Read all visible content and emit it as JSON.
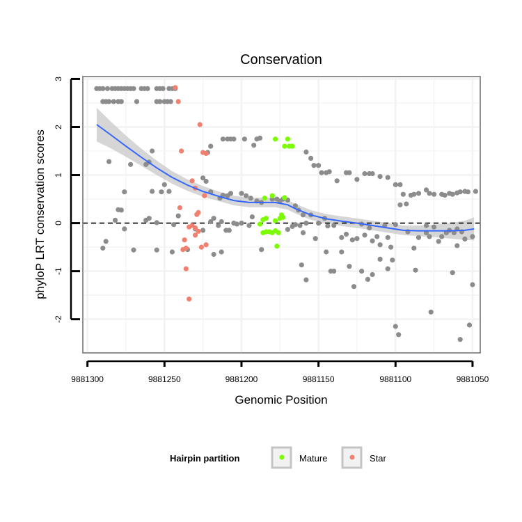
{
  "chart_data": {
    "type": "scatter",
    "title": "Conservation",
    "xlabel": "Genomic Position",
    "ylabel": "phyloP LRT conservation scores",
    "x_reversed": true,
    "xlim": [
      9881050,
      9881300
    ],
    "x_range": [
      9881303,
      9881045
    ],
    "ylim": [
      -2.7,
      3.05
    ],
    "x_ticks": [
      9881300,
      9881250,
      9881200,
      9881150,
      9881100,
      9881050
    ],
    "x_tick_labels": [
      "9881300",
      "9881250",
      "9881200",
      "9881150",
      "9881100",
      "9881050"
    ],
    "y_ticks": [
      -2,
      -1,
      0,
      1,
      2,
      3
    ],
    "y_tick_labels": [
      "-2",
      "-1",
      "0",
      "1",
      "2",
      "3"
    ],
    "grid": true,
    "hline": 0,
    "legend": {
      "title": "Hairpin partition",
      "position": "bottom",
      "entries": [
        {
          "label": "Mature",
          "color": "#7CFC00"
        },
        {
          "label": "Star",
          "color": "#F08070"
        }
      ]
    },
    "colors": {
      "other": "#8C8C8C",
      "mature": "#7CFC00",
      "star": "#F08070",
      "smooth": "#3366FF",
      "ribbon": "#C8C8C8"
    },
    "series": [
      {
        "name": "Other",
        "points": [
          [
            9881294,
            2.8
          ],
          [
            9881292,
            2.8
          ],
          [
            9881290,
            2.8
          ],
          [
            9881287,
            2.8
          ],
          [
            9881284,
            2.8
          ],
          [
            9881282,
            2.8
          ],
          [
            9881280,
            2.8
          ],
          [
            9881278,
            2.8
          ],
          [
            9881276,
            2.8
          ],
          [
            9881274,
            2.8
          ],
          [
            9881272,
            2.8
          ],
          [
            9881270,
            2.8
          ],
          [
            9881265,
            2.8
          ],
          [
            9881263,
            2.8
          ],
          [
            9881261,
            2.8
          ],
          [
            9881255,
            2.8
          ],
          [
            9881253,
            2.8
          ],
          [
            9881251,
            2.8
          ],
          [
            9881247,
            2.8
          ],
          [
            9881245,
            2.8
          ],
          [
            9881243,
            2.8
          ],
          [
            9881290,
            2.53
          ],
          [
            9881288,
            2.53
          ],
          [
            9881286,
            2.53
          ],
          [
            9881283,
            2.53
          ],
          [
            9881280,
            2.53
          ],
          [
            9881278,
            2.53
          ],
          [
            9881268,
            2.53
          ],
          [
            9881255,
            2.53
          ],
          [
            9881253,
            2.53
          ],
          [
            9881250,
            2.53
          ],
          [
            9881248,
            2.53
          ],
          [
            9881246,
            2.53
          ],
          [
            9881286,
            1.28
          ],
          [
            9881272,
            1.22
          ],
          [
            9881262,
            1.22
          ],
          [
            9881260,
            1.27
          ],
          [
            9881258,
            1.5
          ],
          [
            9881250,
            0.8
          ],
          [
            9881276,
            0.65
          ],
          [
            9881280,
            0.28
          ],
          [
            9881278,
            0.27
          ],
          [
            9881282,
            0.06
          ],
          [
            9881260,
            0.1
          ],
          [
            9881262,
            0.06
          ],
          [
            9881258,
            0.66
          ],
          [
            9881255,
            0.01
          ],
          [
            9881247,
            0.66
          ],
          [
            9881252,
            0.65
          ],
          [
            9881276,
            -0.12
          ],
          [
            9881270,
            -0.56
          ],
          [
            9881255,
            -0.56
          ],
          [
            9881288,
            -0.38
          ],
          [
            9881290,
            -0.52
          ],
          [
            9881245,
            -0.6
          ],
          [
            9881241,
            0.15
          ],
          [
            9881244,
            -0.03
          ],
          [
            9881220,
            1.6
          ],
          [
            9881222,
            1.47
          ],
          [
            9881212,
            1.75
          ],
          [
            9881209,
            1.75
          ],
          [
            9881207,
            1.75
          ],
          [
            9881205,
            1.75
          ],
          [
            9881198,
            1.75
          ],
          [
            9881192,
            1.62
          ],
          [
            9881190,
            1.75
          ],
          [
            9881188,
            1.77
          ],
          [
            9881225,
            0.94
          ],
          [
            9881223,
            0.87
          ],
          [
            9881220,
            0.65
          ],
          [
            9881214,
            0.52
          ],
          [
            9881212,
            0.58
          ],
          [
            9881209,
            0.57
          ],
          [
            9881207,
            0.62
          ],
          [
            9881200,
            0.62
          ],
          [
            9881197,
            0.57
          ],
          [
            9881194,
            0.52
          ],
          [
            9881190,
            0.46
          ],
          [
            9881187,
            0.43
          ],
          [
            9881180,
            0.5
          ],
          [
            9881177,
            0.5
          ],
          [
            9881175,
            0.46
          ],
          [
            9881173,
            0.5
          ],
          [
            9881170,
            0.48
          ],
          [
            9881165,
            0.36
          ],
          [
            9881163,
            0.27
          ],
          [
            9881160,
            0.17
          ],
          [
            9881158,
            0.0
          ],
          [
            9881220,
            0.03
          ],
          [
            9881218,
            0.1
          ],
          [
            9881215,
            -0.05
          ],
          [
            9881213,
            0.03
          ],
          [
            9881210,
            -0.15
          ],
          [
            9881208,
            -0.15
          ],
          [
            9881205,
            0.0
          ],
          [
            9881203,
            -0.02
          ],
          [
            9881200,
            0.0
          ],
          [
            9881195,
            -0.05
          ],
          [
            9881193,
            0.13
          ],
          [
            9881187,
            -0.55
          ],
          [
            9881230,
            -0.12
          ],
          [
            9881235,
            -0.55
          ],
          [
            9881225,
            -0.15
          ],
          [
            9881218,
            -0.65
          ],
          [
            9881213,
            -0.6
          ],
          [
            9881170,
            -0.13
          ],
          [
            9881167,
            -0.07
          ],
          [
            9881165,
            -0.03
          ],
          [
            9881158,
            1.48
          ],
          [
            9881155,
            1.35
          ],
          [
            9881153,
            1.2
          ],
          [
            9881150,
            1.2
          ],
          [
            9881148,
            1.05
          ],
          [
            9881145,
            1.05
          ],
          [
            9881143,
            1.07
          ],
          [
            9881138,
            0.88
          ],
          [
            9881132,
            1.05
          ],
          [
            9881130,
            1.05
          ],
          [
            9881125,
            0.91
          ],
          [
            9881120,
            1.03
          ],
          [
            9881117,
            1.03
          ],
          [
            9881115,
            1.03
          ],
          [
            9881110,
            0.97
          ],
          [
            9881105,
            0.95
          ],
          [
            9881100,
            0.8
          ],
          [
            9881097,
            0.8
          ],
          [
            9881090,
            0.58
          ],
          [
            9881088,
            0.6
          ],
          [
            9881085,
            0.62
          ],
          [
            9881080,
            0.69
          ],
          [
            9881078,
            0.62
          ],
          [
            9881075,
            0.6
          ],
          [
            9881070,
            0.6
          ],
          [
            9881068,
            0.58
          ],
          [
            9881065,
            0.62
          ],
          [
            9881063,
            0.6
          ],
          [
            9881060,
            0.63
          ],
          [
            9881058,
            0.65
          ],
          [
            9881055,
            0.66
          ],
          [
            9881053,
            0.65
          ],
          [
            9881048,
            0.66
          ],
          [
            9881162,
            -0.05
          ],
          [
            9881160,
            -0.2
          ],
          [
            9881155,
            0.17
          ],
          [
            9881152,
            -0.32
          ],
          [
            9881150,
            0.0
          ],
          [
            9881146,
            0.1
          ],
          [
            9881144,
            -0.06
          ],
          [
            9881140,
            -0.05
          ],
          [
            9881135,
            -0.3
          ],
          [
            9881132,
            -0.23
          ],
          [
            9881128,
            -0.35
          ],
          [
            9881125,
            -0.32
          ],
          [
            9881122,
            -0.02
          ],
          [
            9881120,
            -0.25
          ],
          [
            9881117,
            -0.1
          ],
          [
            9881115,
            -0.37
          ],
          [
            9881112,
            -0.28
          ],
          [
            9881110,
            -0.45
          ],
          [
            9881107,
            -0.05
          ],
          [
            9881105,
            -0.3
          ],
          [
            9881103,
            -0.5
          ],
          [
            9881100,
            -0.03
          ],
          [
            9881097,
            0.38
          ],
          [
            9881092,
            -0.18
          ],
          [
            9881088,
            -0.52
          ],
          [
            9881085,
            -0.3
          ],
          [
            9881080,
            -0.05
          ],
          [
            9881078,
            -0.28
          ],
          [
            9881075,
            -0.08
          ],
          [
            9881072,
            -0.38
          ],
          [
            9881070,
            -0.28
          ],
          [
            9881067,
            -0.2
          ],
          [
            9881065,
            -0.15
          ],
          [
            9881062,
            -0.2
          ],
          [
            9881060,
            -0.12
          ],
          [
            9881057,
            -0.18
          ],
          [
            9881055,
            -0.33
          ],
          [
            9881050,
            -0.28
          ],
          [
            9881093,
            0.4
          ],
          [
            9881095,
            0.6
          ],
          [
            9881161,
            -0.87
          ],
          [
            9881158,
            -1.18
          ],
          [
            9881145,
            -0.6
          ],
          [
            9881142,
            -1.0
          ],
          [
            9881140,
            -1.0
          ],
          [
            9881135,
            -0.6
          ],
          [
            9881130,
            -0.9
          ],
          [
            9881127,
            -1.32
          ],
          [
            9881122,
            -1.0
          ],
          [
            9881118,
            -1.17
          ],
          [
            9881115,
            -1.07
          ],
          [
            9881110,
            -0.75
          ],
          [
            9881105,
            -0.95
          ],
          [
            9881102,
            -0.77
          ],
          [
            9881087,
            -0.98
          ],
          [
            9881080,
            -0.2
          ],
          [
            9881077,
            -1.85
          ],
          [
            9881063,
            -1.03
          ],
          [
            9881050,
            -1.28
          ],
          [
            9881100,
            -2.15
          ],
          [
            9881098,
            -2.32
          ],
          [
            9881052,
            -2.12
          ],
          [
            9881058,
            -2.42
          ],
          [
            9881060,
            -0.47
          ]
        ]
      },
      {
        "name": "Mature",
        "points": [
          [
            9881188,
            -0.02
          ],
          [
            9881186,
            -0.2
          ],
          [
            9881184,
            -0.18
          ],
          [
            9881182,
            -0.18
          ],
          [
            9881180,
            -0.2
          ],
          [
            9881178,
            -0.16
          ],
          [
            9881176,
            -0.2
          ],
          [
            9881178,
            0.05
          ],
          [
            9881186,
            0.07
          ],
          [
            9881184,
            0.1
          ],
          [
            9881175,
            0.1
          ],
          [
            9881173,
            0.12
          ],
          [
            9881185,
            0.52
          ],
          [
            9881180,
            0.57
          ],
          [
            9881172,
            0.53
          ],
          [
            9881174,
            0.17
          ],
          [
            9881177,
            -0.48
          ],
          [
            9881178,
            1.75
          ],
          [
            9881172,
            1.6
          ],
          [
            9881170,
            1.75
          ],
          [
            9881169,
            1.6
          ],
          [
            9881167,
            1.6
          ]
        ]
      },
      {
        "name": "Star",
        "points": [
          [
            9881243,
            2.82
          ],
          [
            9881241,
            2.53
          ],
          [
            9881239,
            1.5
          ],
          [
            9881227,
            2.05
          ],
          [
            9881225,
            1.47
          ],
          [
            9881223,
            1.45
          ],
          [
            9881232,
            0.88
          ],
          [
            9881230,
            0.73
          ],
          [
            9881240,
            0.32
          ],
          [
            9881228,
            0.22
          ],
          [
            9881229,
            0.18
          ],
          [
            9881224,
            0.57
          ],
          [
            9881232,
            -0.05
          ],
          [
            9881230,
            -0.1
          ],
          [
            9881234,
            -0.08
          ],
          [
            9881228,
            -0.17
          ],
          [
            9881230,
            -0.25
          ],
          [
            9881238,
            -0.55
          ],
          [
            9881236,
            -0.52
          ],
          [
            9881237,
            -0.35
          ],
          [
            9881226,
            -0.5
          ],
          [
            9881223,
            -0.45
          ],
          [
            9881236,
            -0.95
          ],
          [
            9881234,
            -1.58
          ]
        ]
      }
    ],
    "smooth": [
      [
        9881294,
        2.05
      ],
      [
        9881285,
        1.84
      ],
      [
        9881275,
        1.6
      ],
      [
        9881265,
        1.37
      ],
      [
        9881255,
        1.15
      ],
      [
        9881245,
        0.95
      ],
      [
        9881235,
        0.79
      ],
      [
        9881225,
        0.66
      ],
      [
        9881215,
        0.56
      ],
      [
        9881205,
        0.47
      ],
      [
        9881195,
        0.43
      ],
      [
        9881185,
        0.43
      ],
      [
        9881178,
        0.43
      ],
      [
        9881170,
        0.38
      ],
      [
        9881165,
        0.3
      ],
      [
        9881155,
        0.17
      ],
      [
        9881145,
        0.09
      ],
      [
        9881135,
        0.04
      ],
      [
        9881125,
        0.0
      ],
      [
        9881115,
        -0.05
      ],
      [
        9881105,
        -0.1
      ],
      [
        9881095,
        -0.15
      ],
      [
        9881085,
        -0.16
      ],
      [
        9881075,
        -0.16
      ],
      [
        9881065,
        -0.16
      ],
      [
        9881055,
        -0.15
      ],
      [
        9881049,
        -0.12
      ]
    ],
    "ribbon_halfwidth": [
      0.35,
      0.28,
      0.22,
      0.18,
      0.15,
      0.13,
      0.12,
      0.11,
      0.1,
      0.1,
      0.1,
      0.1,
      0.1,
      0.1,
      0.1,
      0.1,
      0.1,
      0.1,
      0.1,
      0.1,
      0.1,
      0.1,
      0.11,
      0.13,
      0.16,
      0.2,
      0.24
    ]
  }
}
